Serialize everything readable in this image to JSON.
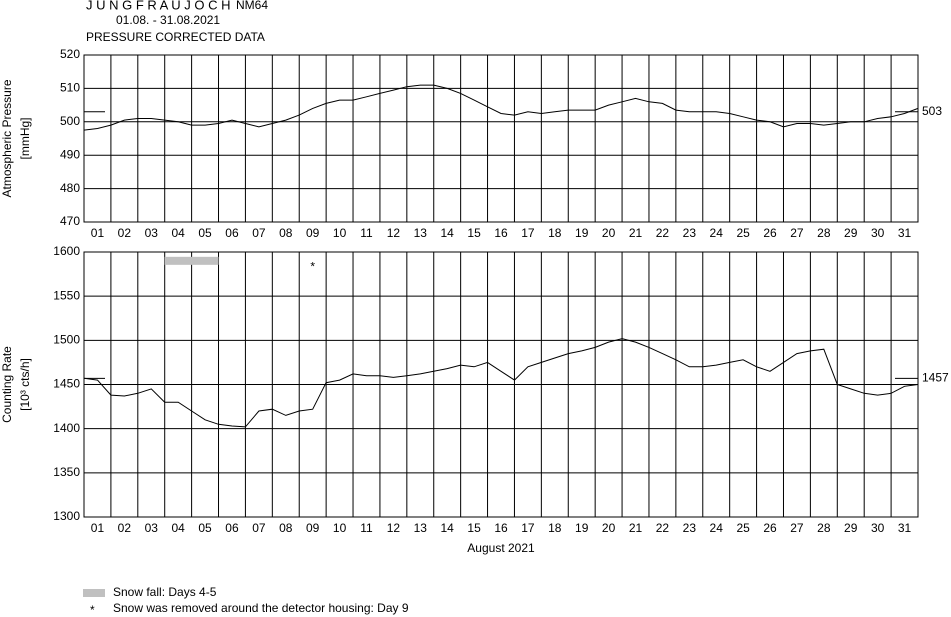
{
  "header": {
    "title": "J U N G F R A U J O C H",
    "station": "NM64",
    "period": "01.08. - 31.08.2021",
    "subtitle": "PRESSURE CORRECTED DATA"
  },
  "legend": [
    "Snow fall: Days 4-5",
    "Snow was removed around the detector housing: Day 9"
  ],
  "chart_data": [
    {
      "type": "line",
      "ylabel": [
        "Atmospheric Pressure",
        "[mmHg]"
      ],
      "xlim": [
        1,
        32
      ],
      "ylim": [
        470,
        520
      ],
      "yticks": [
        470,
        480,
        490,
        500,
        510,
        520
      ],
      "grid": true,
      "xticks": [
        {
          "value": 1,
          "label": "01"
        },
        {
          "value": 2,
          "label": "02"
        },
        {
          "value": 3,
          "label": "03"
        },
        {
          "value": 4,
          "label": "04"
        },
        {
          "value": 5,
          "label": "05"
        },
        {
          "value": 6,
          "label": "06"
        },
        {
          "value": 7,
          "label": "07"
        },
        {
          "value": 8,
          "label": "08"
        },
        {
          "value": 9,
          "label": "09"
        },
        {
          "value": 10,
          "label": "10"
        },
        {
          "value": 11,
          "label": "11"
        },
        {
          "value": 12,
          "label": "12"
        },
        {
          "value": 13,
          "label": "13"
        },
        {
          "value": 14,
          "label": "14"
        },
        {
          "value": 15,
          "label": "15"
        },
        {
          "value": 16,
          "label": "16"
        },
        {
          "value": 17,
          "label": "17"
        },
        {
          "value": 18,
          "label": "18"
        },
        {
          "value": 19,
          "label": "19"
        },
        {
          "value": 20,
          "label": "20"
        },
        {
          "value": 21,
          "label": "21"
        },
        {
          "value": 22,
          "label": "22"
        },
        {
          "value": 23,
          "label": "23"
        },
        {
          "value": 24,
          "label": "24"
        },
        {
          "value": 25,
          "label": "25"
        },
        {
          "value": 26,
          "label": "26"
        },
        {
          "value": 27,
          "label": "27"
        },
        {
          "value": 28,
          "label": "28"
        },
        {
          "value": 29,
          "label": "29"
        },
        {
          "value": 30,
          "label": "30"
        },
        {
          "value": 31,
          "label": "31"
        }
      ],
      "reference": 503,
      "color": "#000000",
      "x": [
        1,
        1.5,
        2,
        2.5,
        3,
        3.5,
        4,
        4.5,
        5,
        5.5,
        6,
        6.5,
        7,
        7.5,
        8,
        8.5,
        9,
        9.5,
        10,
        10.5,
        11,
        11.5,
        12,
        12.5,
        13,
        13.5,
        14,
        14.5,
        15,
        15.5,
        16,
        16.5,
        17,
        17.5,
        18,
        18.5,
        19,
        19.5,
        20,
        20.5,
        21,
        21.5,
        22,
        22.5,
        23,
        23.5,
        24,
        24.5,
        25,
        25.5,
        26,
        26.5,
        27,
        27.5,
        28,
        28.5,
        29,
        29.5,
        30,
        30.5,
        31,
        31.5,
        32
      ],
      "values": [
        497.5,
        498,
        499,
        500.5,
        501,
        501,
        500.5,
        500,
        499,
        499,
        499.5,
        500.5,
        499.5,
        498.5,
        499.5,
        500.5,
        502,
        504,
        505.5,
        506.5,
        506.5,
        507.5,
        508.5,
        509.5,
        510.5,
        511,
        511,
        510,
        508.5,
        506.5,
        504.5,
        502.5,
        502,
        503,
        502.5,
        503,
        503.5,
        503.5,
        503.5,
        505,
        506,
        507,
        506,
        505.5,
        503.5,
        503,
        503,
        503,
        502.5,
        501.5,
        500.5,
        500,
        498.5,
        499.5,
        499.5,
        499,
        499.5,
        500,
        500,
        501,
        501.5,
        502.5,
        504
      ]
    },
    {
      "type": "line",
      "ylabel": [
        "Counting Rate",
        "[10³ cts/h]"
      ],
      "xlabel": "August 2021",
      "xlim": [
        1,
        32
      ],
      "ylim": [
        1300,
        1600
      ],
      "yticks": [
        1300,
        1350,
        1400,
        1450,
        1500,
        1550,
        1600
      ],
      "grid": true,
      "xticks": [
        {
          "value": 1,
          "label": "01"
        },
        {
          "value": 2,
          "label": "02"
        },
        {
          "value": 3,
          "label": "03"
        },
        {
          "value": 4,
          "label": "04"
        },
        {
          "value": 5,
          "label": "05"
        },
        {
          "value": 6,
          "label": "06"
        },
        {
          "value": 7,
          "label": "07"
        },
        {
          "value": 8,
          "label": "08"
        },
        {
          "value": 9,
          "label": "09"
        },
        {
          "value": 10,
          "label": "10"
        },
        {
          "value": 11,
          "label": "11"
        },
        {
          "value": 12,
          "label": "12"
        },
        {
          "value": 13,
          "label": "13"
        },
        {
          "value": 14,
          "label": "14"
        },
        {
          "value": 15,
          "label": "15"
        },
        {
          "value": 16,
          "label": "16"
        },
        {
          "value": 17,
          "label": "17"
        },
        {
          "value": 18,
          "label": "18"
        },
        {
          "value": 19,
          "label": "19"
        },
        {
          "value": 20,
          "label": "20"
        },
        {
          "value": 21,
          "label": "21"
        },
        {
          "value": 22,
          "label": "22"
        },
        {
          "value": 23,
          "label": "23"
        },
        {
          "value": 24,
          "label": "24"
        },
        {
          "value": 25,
          "label": "25"
        },
        {
          "value": 26,
          "label": "26"
        },
        {
          "value": 27,
          "label": "27"
        },
        {
          "value": 28,
          "label": "28"
        },
        {
          "value": 29,
          "label": "29"
        },
        {
          "value": 30,
          "label": "30"
        },
        {
          "value": 31,
          "label": "31"
        }
      ],
      "reference": 1457,
      "color": "#000000",
      "annotations": [
        {
          "x": [
            4,
            6
          ],
          "y": 1590,
          "color": "#c0c0c0"
        },
        {
          "x": 9.5,
          "y": 1585,
          "label": "*"
        }
      ],
      "x": [
        1,
        1.5,
        2,
        2.5,
        3,
        3.5,
        4,
        4.5,
        5,
        5.5,
        6,
        6.5,
        7,
        7.5,
        8,
        8.5,
        9,
        9.5,
        10,
        10.5,
        11,
        11.5,
        12,
        12.5,
        13,
        13.5,
        14,
        14.5,
        15,
        15.5,
        16,
        16.5,
        17,
        17.5,
        18,
        18.5,
        19,
        19.5,
        20,
        20.5,
        21,
        21.5,
        22,
        22.5,
        23,
        23.5,
        24,
        24.5,
        25,
        25.5,
        26,
        26.5,
        27,
        27.5,
        28,
        28.5,
        29,
        29.5,
        30,
        30.5,
        31,
        31.5,
        32
      ],
      "values": [
        1457,
        1455,
        1438,
        1437,
        1440,
        1445,
        1430,
        1430,
        1420,
        1410,
        1405,
        1403,
        1402,
        1420,
        1422,
        1415,
        1420,
        1422,
        1452,
        1455,
        1462,
        1460,
        1460,
        1458,
        1460,
        1462,
        1465,
        1468,
        1472,
        1470,
        1475,
        1465,
        1455,
        1470,
        1475,
        1480,
        1485,
        1488,
        1492,
        1498,
        1502,
        1498,
        1492,
        1485,
        1478,
        1470,
        1470,
        1472,
        1475,
        1478,
        1470,
        1465,
        1475,
        1485,
        1488,
        1490,
        1450,
        1445,
        1440,
        1438,
        1440,
        1448,
        1450
      ]
    }
  ]
}
